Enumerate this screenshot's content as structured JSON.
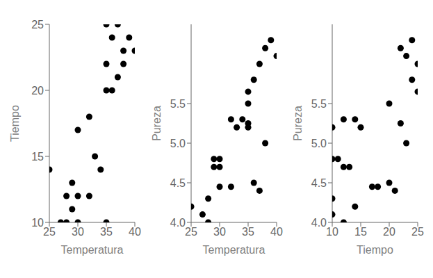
{
  "chart_data": {
    "type": "scatter",
    "xlabel": "Temperatura",
    "ylabel": "Tiempo",
    "zlabel": "Pureza",
    "x": [
      27,
      28,
      28,
      29,
      29,
      30,
      30,
      25,
      30,
      32,
      35,
      32,
      33,
      34,
      35,
      36,
      37,
      38,
      36,
      37,
      38,
      39,
      40,
      35,
      35
    ],
    "y": [
      10,
      10,
      12,
      11,
      13,
      10,
      12,
      14,
      17,
      18,
      10,
      12,
      15,
      14,
      22,
      20,
      21,
      23,
      24,
      25,
      22,
      24,
      23,
      20,
      25
    ],
    "z": [
      4.1,
      4.3,
      4.0,
      4.8,
      4.7,
      4.8,
      4.7,
      4.2,
      4.45,
      4.45,
      5.2,
      5.3,
      5.2,
      5.3,
      5.25,
      4.5,
      4.4,
      5.0,
      5.8,
      6.0,
      6.2,
      6.3,
      6.1,
      5.5,
      5.65
    ],
    "xlim": [
      25,
      40
    ],
    "ylim": [
      10,
      25
    ],
    "zlim": [
      4.0,
      6.5
    ],
    "xticks": [
      25,
      30,
      35,
      40
    ],
    "yticks": [
      10,
      15,
      20,
      25
    ],
    "zticks": [
      {
        "value": 4.0,
        "label": "4.0"
      },
      4.5,
      {
        "value": 5.0,
        "label": "5.0"
      },
      5.5
    ],
    "color": "#000000",
    "grid": false
  }
}
